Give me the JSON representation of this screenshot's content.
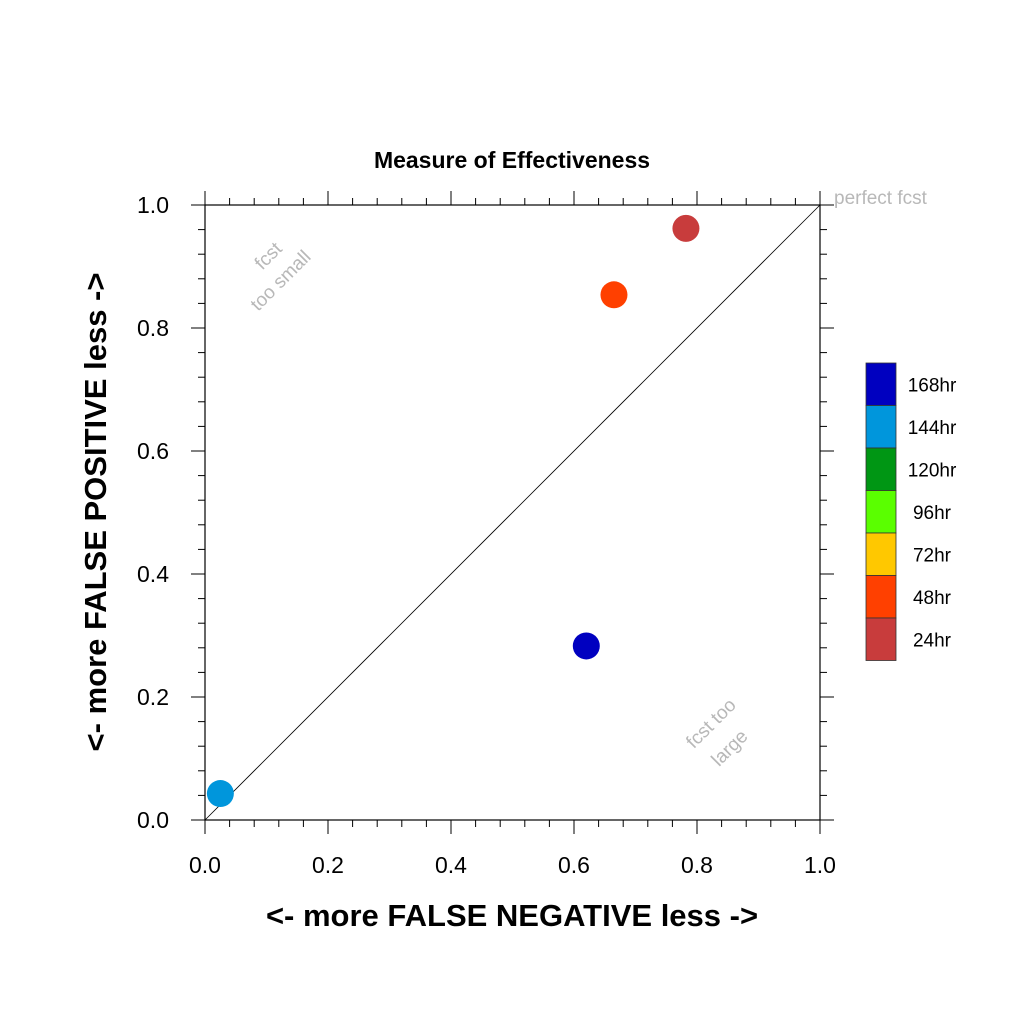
{
  "chart_data": {
    "type": "scatter",
    "title": "Measure of Effectiveness",
    "xlabel": "<- more   FALSE NEGATIVE   less ->",
    "ylabel": "<- more   FALSE POSITIVE   less ->",
    "xlim": [
      0.0,
      1.0
    ],
    "ylim": [
      0.0,
      1.0
    ],
    "xticks": [
      "0.0",
      "0.2",
      "0.4",
      "0.6",
      "0.8",
      "1.0"
    ],
    "yticks": [
      "0.0",
      "0.2",
      "0.4",
      "0.6",
      "0.8",
      "1.0"
    ],
    "reference_line": {
      "from": [
        0,
        0
      ],
      "to": [
        1,
        1
      ]
    },
    "annotations": [
      {
        "text": "perfect fcst",
        "x": 1.0,
        "y": 1.0
      },
      {
        "text": "fcst",
        "x": 0.11,
        "y": 0.91
      },
      {
        "text": "too small",
        "x": 0.13,
        "y": 0.87
      },
      {
        "text": "fcst too",
        "x": 0.83,
        "y": 0.15
      },
      {
        "text": "large",
        "x": 0.86,
        "y": 0.11
      }
    ],
    "points": [
      {
        "label": "168hr",
        "x": 0.62,
        "y": 0.283,
        "color": "#0000c0"
      },
      {
        "label": "144hr",
        "x": 0.025,
        "y": 0.043,
        "color": "#0096dc"
      },
      {
        "label": "48hr",
        "x": 0.665,
        "y": 0.854,
        "color": "#ff4000"
      },
      {
        "label": "24hr",
        "x": 0.782,
        "y": 0.962,
        "color": "#c83c3c"
      }
    ],
    "legend": {
      "position": "right",
      "items": [
        {
          "label": "168hr",
          "color": "#0000c0"
        },
        {
          "label": "144hr",
          "color": "#0096dc"
        },
        {
          "label": "120hr",
          "color": "#009614"
        },
        {
          "label": "96hr",
          "color": "#5aff00"
        },
        {
          "label": "72hr",
          "color": "#ffc800"
        },
        {
          "label": "48hr",
          "color": "#ff4000"
        },
        {
          "label": "24hr",
          "color": "#c83c3c"
        }
      ]
    }
  }
}
